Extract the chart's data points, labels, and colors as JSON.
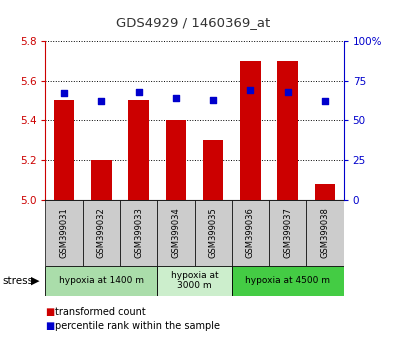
{
  "title": "GDS4929 / 1460369_at",
  "samples": [
    "GSM399031",
    "GSM399032",
    "GSM399033",
    "GSM399034",
    "GSM399035",
    "GSM399036",
    "GSM399037",
    "GSM399038"
  ],
  "transformed_counts": [
    5.5,
    5.2,
    5.5,
    5.4,
    5.3,
    5.7,
    5.7,
    5.08
  ],
  "percentile_ranks": [
    67,
    62,
    68,
    64,
    63,
    69,
    68,
    62
  ],
  "ylim_left": [
    5.0,
    5.8
  ],
  "ylim_right": [
    0,
    100
  ],
  "yticks_left": [
    5.0,
    5.2,
    5.4,
    5.6,
    5.8
  ],
  "yticks_right": [
    0,
    25,
    50,
    75,
    100
  ],
  "bar_color": "#cc0000",
  "dot_color": "#0000cc",
  "groups": [
    {
      "label": "hypoxia at 1400 m",
      "start": 0,
      "end": 3,
      "color": "#aaddaa"
    },
    {
      "label": "hypoxia at\n3000 m",
      "start": 3,
      "end": 5,
      "color": "#cceecc"
    },
    {
      "label": "hypoxia at 4500 m",
      "start": 5,
      "end": 8,
      "color": "#44cc44"
    }
  ],
  "ylabel_left_color": "#cc0000",
  "ylabel_right_color": "#0000cc",
  "grid_color": "#000000",
  "background_color": "#ffffff",
  "tick_label_bg": "#cccccc"
}
